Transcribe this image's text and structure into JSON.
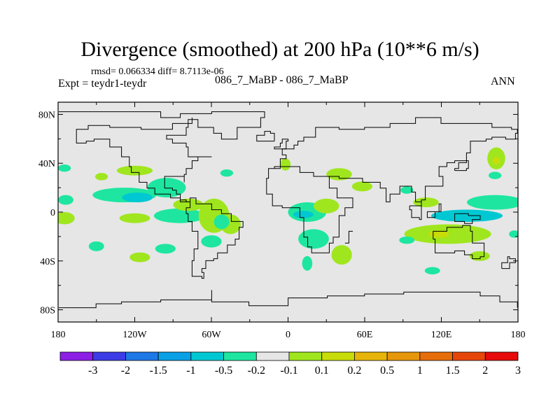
{
  "title": "Divergence (smoothed) at 200 hPa (10**6 m/s)",
  "stats": "rmsd= 0.066334 diff= 8.7113e-06",
  "experiment": "Expt = teydr1-teydr",
  "case_label": "086_7_MaBP - 086_7_MaBP",
  "season": "ANN",
  "map": {
    "lon_ticks": [
      "180",
      "120W",
      "60W",
      "0",
      "60E",
      "120E",
      "180"
    ],
    "lat_ticks": [
      "80N",
      "40N",
      "0",
      "40S",
      "80S"
    ],
    "background_color": "#e6e6e6",
    "coastline_color": "#000000"
  },
  "colorbar": {
    "labels": [
      "-3",
      "-2",
      "-1.5",
      "-1",
      "-0.5",
      "-0.2",
      "-0.1",
      "0.1",
      "0.2",
      "0.5",
      "1",
      "1.5",
      "2",
      "3"
    ],
    "colors": [
      "#8c1ee6",
      "#3c3ce6",
      "#1e78e6",
      "#0aa0e6",
      "#00c8d2",
      "#1ee6a0",
      "#e6e6e6",
      "#a0e61e",
      "#c8dc0a",
      "#e6b40a",
      "#e6960a",
      "#e66e0a",
      "#e6460a",
      "#e60a0a"
    ]
  },
  "fields": [
    {
      "color": "#a0e61e",
      "lon": -175,
      "lat": -5,
      "rx": 8,
      "ry": 5
    },
    {
      "color": "#1ee6a0",
      "lon": -175,
      "lat": 36,
      "rx": 5,
      "ry": 3
    },
    {
      "color": "#1ee6a0",
      "lon": -174,
      "lat": 10,
      "rx": 6,
      "ry": 4
    },
    {
      "color": "#a0e61e",
      "lon": -146,
      "lat": 29,
      "rx": 5,
      "ry": 3
    },
    {
      "color": "#a0e61e",
      "lon": -120,
      "lat": 34,
      "rx": 14,
      "ry": 4
    },
    {
      "color": "#1ee6a0",
      "lon": -128,
      "lat": 14,
      "rx": 25,
      "ry": 6
    },
    {
      "color": "#1ee6a0",
      "lon": -95,
      "lat": 20,
      "rx": 15,
      "ry": 8
    },
    {
      "color": "#1ee6a0",
      "lon": -48,
      "lat": 32,
      "rx": 5,
      "ry": 3
    },
    {
      "color": "#00c8d2",
      "lon": -118,
      "lat": 12,
      "rx": 12,
      "ry": 4
    },
    {
      "color": "#a0e61e",
      "lon": -120,
      "lat": -5,
      "rx": 12,
      "ry": 4
    },
    {
      "color": "#1ee6a0",
      "lon": -85,
      "lat": -3,
      "rx": 20,
      "ry": 6
    },
    {
      "color": "#a0e61e",
      "lon": -78,
      "lat": 6,
      "rx": 12,
      "ry": 5
    },
    {
      "color": "#a0e61e",
      "lon": -58,
      "lat": -3,
      "rx": 12,
      "ry": 14
    },
    {
      "color": "#a0e61e",
      "lon": -45,
      "lat": -10,
      "rx": 8,
      "ry": 8
    },
    {
      "color": "#1ee6a0",
      "lon": -52,
      "lat": -8,
      "rx": 6,
      "ry": 6
    },
    {
      "color": "#1ee6a0",
      "lon": -150,
      "lat": -28,
      "rx": 6,
      "ry": 4
    },
    {
      "color": "#a0e61e",
      "lon": -116,
      "lat": -37,
      "rx": 8,
      "ry": 4
    },
    {
      "color": "#1ee6a0",
      "lon": -96,
      "lat": -30,
      "rx": 8,
      "ry": 4
    },
    {
      "color": "#1ee6a0",
      "lon": -60,
      "lat": -24,
      "rx": 8,
      "ry": 5
    },
    {
      "color": "#a0e61e",
      "lon": -2,
      "lat": 39,
      "rx": 4,
      "ry": 5
    },
    {
      "color": "#a0e61e",
      "lon": 40,
      "lat": 31,
      "rx": 10,
      "ry": 5
    },
    {
      "color": "#1ee6a0",
      "lon": 15,
      "lat": 0,
      "rx": 15,
      "ry": 8
    },
    {
      "color": "#a0e61e",
      "lon": 30,
      "lat": 5,
      "rx": 10,
      "ry": 6
    },
    {
      "color": "#00c8d2",
      "lon": 12,
      "lat": -2,
      "rx": 8,
      "ry": 3
    },
    {
      "color": "#1ee6a0",
      "lon": 20,
      "lat": -22,
      "rx": 12,
      "ry": 8
    },
    {
      "color": "#a0e61e",
      "lon": 42,
      "lat": -35,
      "rx": 8,
      "ry": 8
    },
    {
      "color": "#1ee6a0",
      "lon": 15,
      "lat": -42,
      "rx": 4,
      "ry": 6
    },
    {
      "color": "#a0e61e",
      "lon": 58,
      "lat": 21,
      "rx": 8,
      "ry": 4
    },
    {
      "color": "#a0e61e",
      "lon": 108,
      "lat": 8,
      "rx": 10,
      "ry": 4
    },
    {
      "color": "#1ee6a0",
      "lon": 93,
      "lat": 18,
      "rx": 5,
      "ry": 3
    },
    {
      "color": "#1ee6a0",
      "lon": 162,
      "lat": 8,
      "rx": 22,
      "ry": 6
    },
    {
      "color": "#00c8d2",
      "lon": 140,
      "lat": -3,
      "rx": 28,
      "ry": 5
    },
    {
      "color": "#a0e61e",
      "lon": 125,
      "lat": -18,
      "rx": 34,
      "ry": 8
    },
    {
      "color": "#c8dc0a",
      "lon": 118,
      "lat": -18,
      "rx": 8,
      "ry": 3
    },
    {
      "color": "#a0e61e",
      "lon": 163,
      "lat": 44,
      "rx": 7,
      "ry": 9
    },
    {
      "color": "#c8dc0a",
      "lon": 163,
      "lat": 42,
      "rx": 3,
      "ry": 3
    },
    {
      "color": "#1ee6a0",
      "lon": 162,
      "lat": 30,
      "rx": 5,
      "ry": 3
    },
    {
      "color": "#a0e61e",
      "lon": 150,
      "lat": -36,
      "rx": 8,
      "ry": 4
    },
    {
      "color": "#1ee6a0",
      "lon": 113,
      "lat": -48,
      "rx": 6,
      "ry": 3
    },
    {
      "color": "#1ee6a0",
      "lon": 93,
      "lat": -23,
      "rx": 6,
      "ry": 3
    },
    {
      "color": "#1ee6a0",
      "lon": 177,
      "lat": -18,
      "rx": 4,
      "ry": 3
    }
  ],
  "coastlines": [
    [
      [
        -180,
        82
      ],
      [
        -105,
        82
      ],
      [
        -100,
        77
      ],
      [
        -85,
        80
      ],
      [
        -60,
        82
      ],
      [
        -25,
        82
      ],
      [
        -18,
        78
      ],
      [
        -22,
        70
      ],
      [
        -40,
        60
      ],
      [
        -52,
        64
      ],
      [
        -58,
        70
      ],
      [
        -70,
        76
      ],
      [
        -78,
        70
      ],
      [
        -80,
        63
      ],
      [
        -95,
        60
      ],
      [
        -90,
        56
      ],
      [
        -80,
        54
      ],
      [
        -78,
        46
      ],
      [
        -65,
        45
      ],
      [
        -60,
        46
      ],
      [
        -70,
        42
      ],
      [
        -75,
        36
      ],
      [
        -80,
        31
      ],
      [
        -81,
        25
      ],
      [
        -82,
        30
      ],
      [
        -90,
        30
      ],
      [
        -97,
        27
      ],
      [
        -97,
        20
      ],
      [
        -90,
        18
      ],
      [
        -88,
        15
      ],
      [
        -84,
        10
      ],
      [
        -80,
        8
      ],
      [
        -78,
        9
      ],
      [
        -85,
        12
      ],
      [
        -92,
        15
      ],
      [
        -105,
        20
      ],
      [
        -110,
        24
      ],
      [
        -117,
        32
      ],
      [
        -123,
        38
      ],
      [
        -124,
        46
      ],
      [
        -130,
        54
      ],
      [
        -140,
        60
      ],
      [
        -152,
        58
      ],
      [
        -158,
        56
      ],
      [
        -165,
        62
      ],
      [
        -166,
        68
      ],
      [
        -157,
        71
      ],
      [
        -140,
        70
      ],
      [
        -128,
        70
      ],
      [
        -115,
        68
      ],
      [
        -100,
        68
      ],
      [
        -90,
        72
      ],
      [
        -80,
        72
      ],
      [
        -75,
        78
      ]
    ],
    [
      [
        -80,
        9
      ],
      [
        -77,
        4
      ],
      [
        -80,
        -2
      ],
      [
        -78,
        -8
      ],
      [
        -75,
        -15
      ],
      [
        -70,
        -18
      ],
      [
        -71,
        -30
      ],
      [
        -73,
        -40
      ],
      [
        -75,
        -52
      ],
      [
        -68,
        -55
      ],
      [
        -66,
        -50
      ],
      [
        -68,
        -46
      ],
      [
        -64,
        -40
      ],
      [
        -58,
        -38
      ],
      [
        -55,
        -33
      ],
      [
        -48,
        -27
      ],
      [
        -42,
        -22
      ],
      [
        -38,
        -13
      ],
      [
        -35,
        -7
      ],
      [
        -45,
        -2
      ],
      [
        -52,
        2
      ],
      [
        -60,
        7
      ],
      [
        -72,
        12
      ],
      [
        -77,
        9
      ],
      [
        -80,
        9
      ]
    ],
    [
      [
        -10,
        36
      ],
      [
        -6,
        44
      ],
      [
        -2,
        47
      ],
      [
        -4,
        52
      ],
      [
        5,
        55
      ],
      [
        8,
        58
      ],
      [
        12,
        62
      ],
      [
        22,
        70
      ],
      [
        40,
        68
      ],
      [
        60,
        70
      ],
      [
        80,
        73
      ],
      [
        100,
        77
      ],
      [
        120,
        73
      ],
      [
        140,
        72
      ],
      [
        160,
        70
      ],
      [
        175,
        68
      ],
      [
        180,
        66
      ]
    ],
    [
      [
        -10,
        36
      ],
      [
        -15,
        28
      ],
      [
        -17,
        20
      ],
      [
        -17,
        14
      ],
      [
        -12,
        5
      ],
      [
        -5,
        4
      ],
      [
        5,
        4
      ],
      [
        9,
        2
      ],
      [
        10,
        -5
      ],
      [
        12,
        -12
      ],
      [
        13,
        -20
      ],
      [
        15,
        -28
      ],
      [
        18,
        -34
      ],
      [
        25,
        -34
      ],
      [
        33,
        -26
      ],
      [
        35,
        -20
      ],
      [
        40,
        -12
      ],
      [
        40,
        -3
      ],
      [
        45,
        3
      ],
      [
        51,
        11
      ],
      [
        43,
        12
      ],
      [
        38,
        20
      ],
      [
        33,
        30
      ],
      [
        20,
        32
      ],
      [
        10,
        37
      ],
      [
        0,
        37
      ],
      [
        -10,
        36
      ]
    ],
    [
      [
        33,
        30
      ],
      [
        40,
        28
      ],
      [
        45,
        28
      ],
      [
        58,
        24
      ],
      [
        62,
        25
      ],
      [
        67,
        24
      ],
      [
        72,
        20
      ],
      [
        77,
        8
      ],
      [
        80,
        15
      ],
      [
        87,
        22
      ],
      [
        92,
        22
      ],
      [
        97,
        16
      ],
      [
        100,
        8
      ],
      [
        104,
        1
      ],
      [
        105,
        10
      ],
      [
        108,
        16
      ],
      [
        108,
        21
      ],
      [
        120,
        22
      ],
      [
        122,
        30
      ],
      [
        118,
        38
      ],
      [
        125,
        40
      ],
      [
        130,
        42
      ],
      [
        140,
        48
      ],
      [
        143,
        58
      ],
      [
        155,
        59
      ],
      [
        160,
        62
      ],
      [
        170,
        60
      ],
      [
        178,
        64
      ],
      [
        180,
        66
      ]
    ],
    [
      [
        114,
        -22
      ],
      [
        115,
        -34
      ],
      [
        123,
        -34
      ],
      [
        131,
        -32
      ],
      [
        138,
        -35
      ],
      [
        145,
        -38
      ],
      [
        150,
        -37
      ],
      [
        153,
        -30
      ],
      [
        153,
        -25
      ],
      [
        145,
        -15
      ],
      [
        142,
        -11
      ],
      [
        136,
        -12
      ],
      [
        130,
        -12
      ],
      [
        125,
        -15
      ],
      [
        114,
        -22
      ]
    ],
    [
      [
        44,
        -25
      ],
      [
        47,
        -15
      ],
      [
        50,
        -15
      ],
      [
        47,
        -25
      ],
      [
        44,
        -25
      ]
    ],
    [
      [
        -180,
        -78
      ],
      [
        -150,
        -75
      ],
      [
        -130,
        -74
      ],
      [
        -100,
        -72
      ],
      [
        -75,
        -72
      ],
      [
        -60,
        -64
      ],
      [
        -60,
        -74
      ],
      [
        -30,
        -77
      ],
      [
        0,
        -70
      ],
      [
        30,
        -69
      ],
      [
        60,
        -67
      ],
      [
        90,
        -66
      ],
      [
        120,
        -66
      ],
      [
        150,
        -68
      ],
      [
        165,
        -74
      ],
      [
        180,
        -78
      ]
    ],
    [
      [
        -8,
        52
      ],
      [
        -10,
        54
      ],
      [
        -6,
        56
      ],
      [
        -5,
        59
      ],
      [
        0,
        58
      ],
      [
        -2,
        51
      ],
      [
        -8,
        52
      ]
    ],
    [
      [
        -10,
        58
      ],
      [
        -25,
        63
      ],
      [
        -18,
        66
      ],
      [
        -13,
        65
      ],
      [
        -10,
        58
      ]
    ],
    [
      [
        131,
        34
      ],
      [
        135,
        34
      ],
      [
        140,
        36
      ],
      [
        141,
        42
      ],
      [
        139,
        40
      ],
      [
        133,
        35
      ],
      [
        131,
        34
      ]
    ],
    [
      [
        95,
        5
      ],
      [
        105,
        -6
      ],
      [
        103,
        -5
      ],
      [
        97,
        2
      ],
      [
        95,
        5
      ]
    ],
    [
      [
        109,
        1
      ],
      [
        118,
        6
      ],
      [
        119,
        0
      ],
      [
        115,
        -4
      ],
      [
        109,
        -2
      ],
      [
        109,
        1
      ]
    ],
    [
      [
        131,
        -1
      ],
      [
        141,
        -3
      ],
      [
        150,
        -6
      ],
      [
        145,
        -9
      ],
      [
        138,
        -8
      ],
      [
        131,
        -1
      ]
    ],
    [
      [
        167,
        -46
      ],
      [
        174,
        -41
      ],
      [
        178,
        -38
      ],
      [
        174,
        -36
      ],
      [
        172,
        -41
      ],
      [
        167,
        -46
      ]
    ]
  ]
}
